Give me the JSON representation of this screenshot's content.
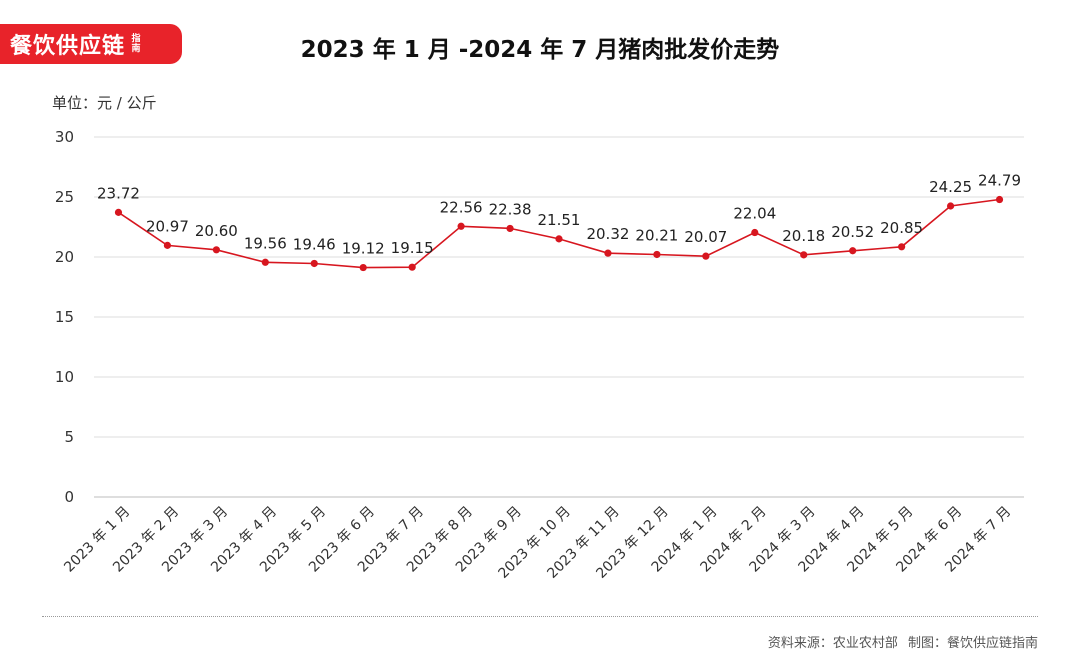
{
  "brand": {
    "name": "餐饮供应链",
    "tag": "指南",
    "color": "#e8232a"
  },
  "footer": {
    "source": "资料来源：农业农村部",
    "credit": "制图：餐饮供应链指南"
  },
  "chart_data": {
    "type": "line",
    "title": "2023 年 1 月 -2024 年 7 月猪肉批发价走势",
    "unit_label": "单位：元 / 公斤",
    "categories": [
      "2023 年 1 月",
      "2023 年 2 月",
      "2023 年 3 月",
      "2023 年 4 月",
      "2023 年 5 月",
      "2023 年 6 月",
      "2023 年 7 月",
      "2023 年 8 月",
      "2023 年 9 月",
      "2023 年 10 月",
      "2023 年 11 月",
      "2023 年 12 月",
      "2024 年 1 月",
      "2024 年 2 月",
      "2024 年 3 月",
      "2024 年 4 月",
      "2024 年 5 月",
      "2024 年 6 月",
      "2024 年 7 月"
    ],
    "values": [
      23.72,
      20.97,
      20.6,
      19.56,
      19.46,
      19.12,
      19.15,
      22.56,
      22.38,
      21.51,
      20.32,
      20.21,
      20.07,
      22.04,
      20.18,
      20.52,
      20.85,
      24.25,
      24.79
    ],
    "value_labels": [
      "23.72",
      "20.97",
      "20.60",
      "19.56",
      "19.46",
      "19.12",
      "19.15",
      "22.56",
      "22.38",
      "21.51",
      "20.32",
      "20.21",
      "20.07",
      "22.04",
      "20.18",
      "20.52",
      "20.85",
      "24.25",
      "24.79"
    ],
    "ylim": [
      0,
      30
    ],
    "yticks": [
      0,
      5,
      10,
      15,
      20,
      25,
      30
    ],
    "grid": true,
    "line_color": "#d7161f"
  }
}
